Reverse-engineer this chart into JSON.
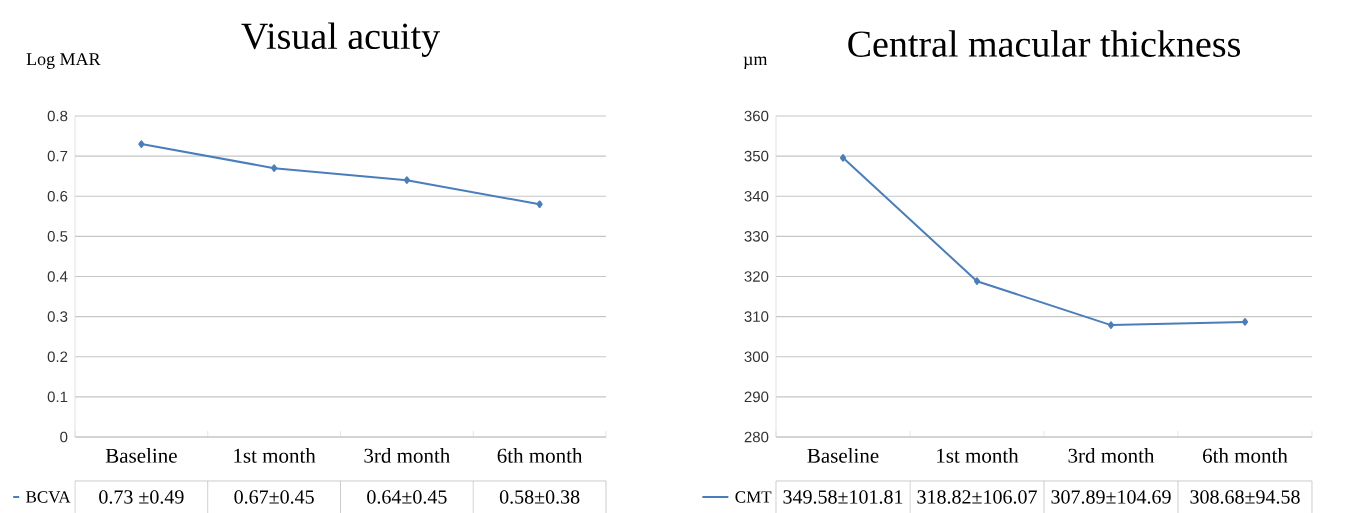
{
  "chart_data": [
    {
      "type": "line",
      "title": "Visual acuity",
      "ylabel": "Log MAR",
      "categories": [
        "Baseline",
        "1st month",
        "3rd month",
        "6th month"
      ],
      "series": [
        {
          "name": "BCVA",
          "color": "#4a7ebb",
          "values": [
            0.73,
            0.67,
            0.64,
            0.58
          ],
          "value_labels": [
            "0.73 ±0.49",
            "0.67±0.45",
            "0.64±0.45",
            "0.58±0.38"
          ]
        }
      ],
      "ylim": [
        0,
        0.8
      ],
      "yticks": [
        0,
        0.1,
        0.2,
        0.3,
        0.4,
        0.5,
        0.6,
        0.7,
        0.8
      ],
      "grid": "y",
      "legend": "bottom left",
      "marker": "diamond",
      "line_style": "solid"
    },
    {
      "type": "line",
      "title": "Central macular thickness",
      "ylabel": "µm",
      "categories": [
        "Baseline",
        "1st month",
        "3rd month",
        "6th month"
      ],
      "series": [
        {
          "name": "CMT",
          "color": "#4a7ebb",
          "values": [
            349.58,
            318.82,
            307.89,
            308.68
          ],
          "value_labels": [
            "349.58±101.81",
            "318.82±106.07",
            "307.89±104.69",
            "308.68±94.58"
          ]
        }
      ],
      "ylim": [
        280,
        360
      ],
      "yticks": [
        280,
        290,
        300,
        310,
        320,
        330,
        340,
        350,
        360
      ],
      "grid": "y",
      "legend": "bottom left",
      "marker": "diamond",
      "line_style": "solid"
    }
  ]
}
